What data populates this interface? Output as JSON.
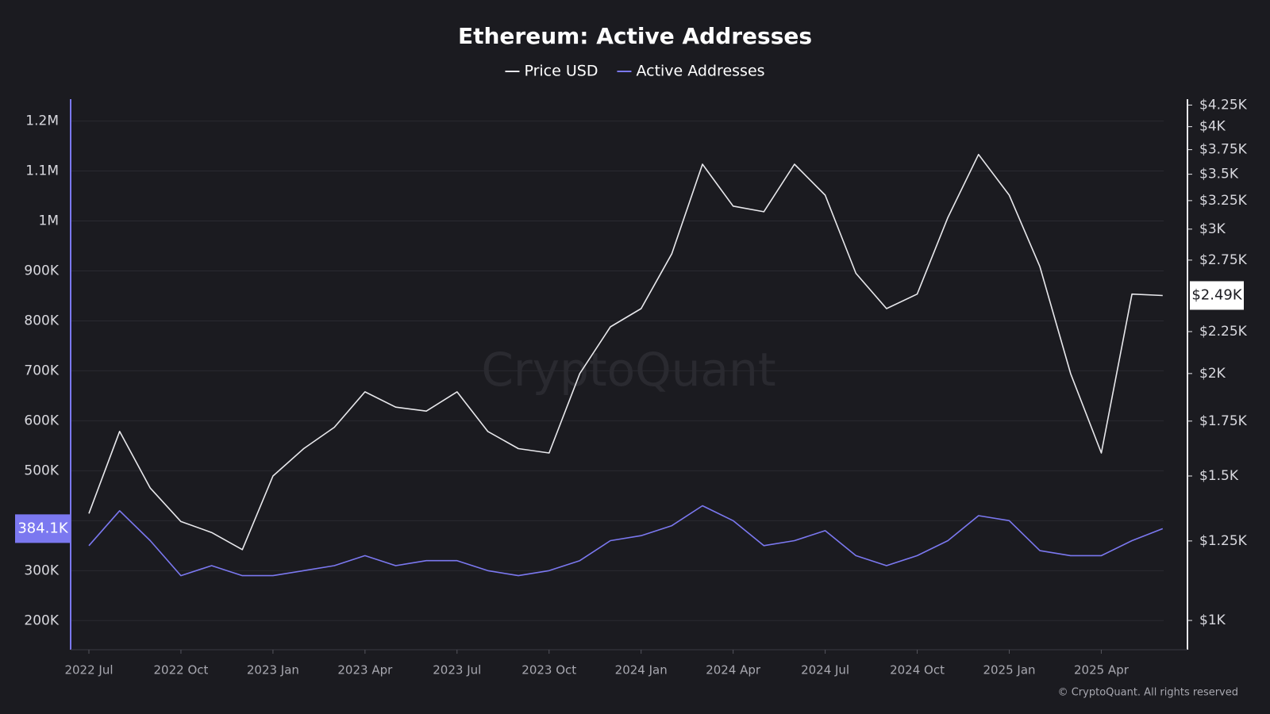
{
  "chart_data": {
    "type": "line",
    "title": "Ethereum: Active Addresses",
    "watermark": "CryptoQuant",
    "credit": "© CryptoQuant. All rights reserved",
    "background": "#1b1b20",
    "grid": true,
    "legend_position": "top",
    "y2log": true,
    "categories": [
      "2022 Jul",
      null,
      null,
      "2022 Oct",
      null,
      null,
      "2023 Jan",
      null,
      null,
      "2023 Apr",
      null,
      null,
      "2023 Jul",
      null,
      null,
      "2023 Oct",
      null,
      null,
      "2024 Jan",
      null,
      null,
      "2024 Apr",
      null,
      null,
      "2024 Jul",
      null,
      null,
      "2024 Oct",
      null,
      null,
      "2025 Jan",
      null,
      null,
      "2025 Apr",
      null,
      null
    ],
    "ylim": [
      141700,
      1243800
    ],
    "yticks": [
      {
        "value": 200000,
        "label": "200K"
      },
      {
        "value": 300000,
        "label": "300K"
      },
      {
        "value": 400000,
        "label": "400K"
      },
      {
        "value": 500000,
        "label": "500K"
      },
      {
        "value": 600000,
        "label": "600K"
      },
      {
        "value": 700000,
        "label": "700K"
      },
      {
        "value": 800000,
        "label": "800K"
      },
      {
        "value": 900000,
        "label": "900K"
      },
      {
        "value": 1000000,
        "label": "1M"
      },
      {
        "value": 1100000,
        "label": "1.1M"
      },
      {
        "value": 1200000,
        "label": "1.2M"
      }
    ],
    "y2lim": [
      921,
      4321
    ],
    "y2ticks": [
      {
        "value": 1000,
        "label": "$1K"
      },
      {
        "value": 1250,
        "label": "$1.25K"
      },
      {
        "value": 1500,
        "label": "$1.5K"
      },
      {
        "value": 1750,
        "label": "$1.75K"
      },
      {
        "value": 2000,
        "label": "$2K"
      },
      {
        "value": 2250,
        "label": "$2.25K"
      },
      {
        "value": 2750,
        "label": "$2.75K"
      },
      {
        "value": 3000,
        "label": "$3K"
      },
      {
        "value": 3250,
        "label": "$3.25K"
      },
      {
        "value": 3500,
        "label": "$3.5K"
      },
      {
        "value": 3750,
        "label": "$3.75K"
      },
      {
        "value": 4000,
        "label": "$4K"
      },
      {
        "value": 4250,
        "label": "$4.25K"
      }
    ],
    "series": [
      {
        "name": "Price USD",
        "color": "#e8e8ec",
        "axis": "y2",
        "values": [
          1350,
          1700,
          1450,
          1320,
          1280,
          1220,
          1500,
          1620,
          1720,
          1900,
          1820,
          1800,
          1900,
          1700,
          1620,
          1600,
          2000,
          2280,
          2400,
          2800,
          3600,
          3200,
          3150,
          3600,
          3300,
          2650,
          2400,
          2500,
          3100,
          3700,
          3300,
          2700,
          2000,
          1600,
          2500,
          2490
        ],
        "value_labels": [
          null,
          null,
          null,
          null,
          null,
          null,
          null,
          null,
          null,
          null,
          null,
          null,
          null,
          null,
          null,
          null,
          null,
          null,
          null,
          null,
          null,
          null,
          null,
          null,
          null,
          null,
          null,
          null,
          null,
          null,
          null,
          null,
          null,
          null,
          null,
          "$2.49K"
        ]
      },
      {
        "name": "Active Addresses",
        "color": "#7b78f0",
        "values": [
          350000,
          420000,
          360000,
          290000,
          310000,
          290000,
          290000,
          300000,
          310000,
          330000,
          310000,
          320000,
          320000,
          300000,
          290000,
          300000,
          320000,
          360000,
          370000,
          390000,
          430000,
          400000,
          350000,
          360000,
          380000,
          330000,
          310000,
          330000,
          360000,
          410000,
          400000,
          340000,
          330000,
          330000,
          360000,
          384100
        ],
        "value_labels": [
          null,
          null,
          null,
          null,
          null,
          null,
          null,
          null,
          null,
          null,
          null,
          null,
          null,
          null,
          null,
          null,
          null,
          null,
          null,
          null,
          null,
          null,
          null,
          null,
          null,
          null,
          null,
          null,
          null,
          null,
          null,
          null,
          null,
          null,
          null,
          "384.1K"
        ]
      }
    ]
  }
}
